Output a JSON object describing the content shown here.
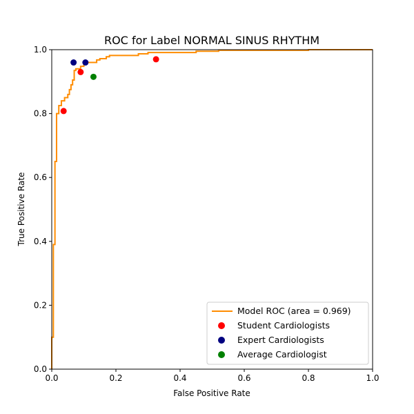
{
  "chart_data": {
    "type": "line",
    "title": "ROC for Label NORMAL SINUS RHYTHM",
    "xlabel": "False Positive Rate",
    "ylabel": "True Positive Rate",
    "xlim": [
      0.0,
      1.0
    ],
    "ylim": [
      0.0,
      1.0
    ],
    "xticks": [
      "0.0",
      "0.2",
      "0.4",
      "0.6",
      "0.8",
      "1.0"
    ],
    "yticks": [
      "0.0",
      "0.2",
      "0.4",
      "0.6",
      "0.8",
      "1.0"
    ],
    "grid": false,
    "legend_position": "lower right",
    "colors": {
      "roc": "#ff8c00",
      "student": "#ff0000",
      "expert": "#000080",
      "average": "#008000"
    },
    "series": [
      {
        "name": "Model ROC (area = 0.969)",
        "kind": "step-line",
        "x": [
          0.0,
          0.0,
          0.005,
          0.005,
          0.01,
          0.01,
          0.015,
          0.015,
          0.022,
          0.022,
          0.03,
          0.03,
          0.04,
          0.04,
          0.05,
          0.05,
          0.055,
          0.055,
          0.06,
          0.06,
          0.065,
          0.065,
          0.07,
          0.07,
          0.075,
          0.075,
          0.09,
          0.09,
          0.1,
          0.1,
          0.11,
          0.11,
          0.14,
          0.14,
          0.15,
          0.15,
          0.17,
          0.17,
          0.18,
          0.18,
          0.27,
          0.27,
          0.3,
          0.3,
          0.45,
          0.45,
          0.52,
          0.52,
          0.8,
          0.8,
          1.0
        ],
        "y": [
          0.0,
          0.1,
          0.1,
          0.39,
          0.39,
          0.65,
          0.65,
          0.8,
          0.8,
          0.825,
          0.825,
          0.84,
          0.84,
          0.85,
          0.85,
          0.86,
          0.86,
          0.875,
          0.875,
          0.89,
          0.89,
          0.905,
          0.905,
          0.935,
          0.935,
          0.94,
          0.94,
          0.948,
          0.948,
          0.955,
          0.955,
          0.96,
          0.96,
          0.968,
          0.968,
          0.972,
          0.972,
          0.978,
          0.978,
          0.982,
          0.982,
          0.987,
          0.987,
          0.991,
          0.991,
          0.995,
          0.995,
          0.998,
          0.998,
          1.0,
          1.0
        ]
      },
      {
        "name": "Student Cardiologists",
        "kind": "scatter",
        "x": [
          0.037,
          0.09,
          0.325
        ],
        "y": [
          0.808,
          0.93,
          0.97
        ]
      },
      {
        "name": "Expert Cardiologists",
        "kind": "scatter",
        "x": [
          0.068,
          0.105
        ],
        "y": [
          0.96,
          0.96
        ]
      },
      {
        "name": "Average Cardiologist",
        "kind": "scatter",
        "x": [
          0.13
        ],
        "y": [
          0.915
        ]
      }
    ]
  }
}
